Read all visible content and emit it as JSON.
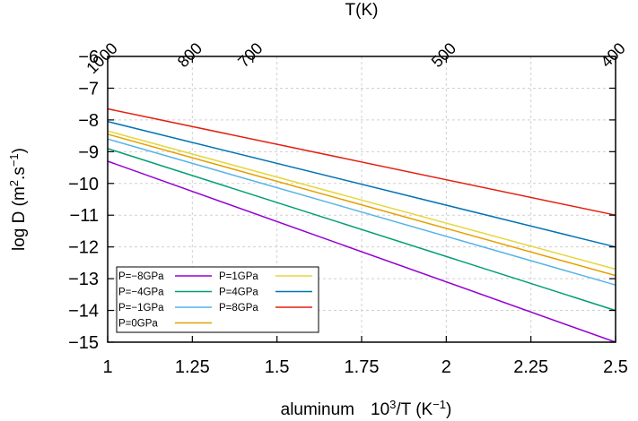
{
  "chart_data": {
    "type": "line",
    "xlabel_prefix": "aluminum",
    "xlabel_main": "10",
    "xlabel_sup": "3",
    "xlabel_rest": "/T (K",
    "xlabel_sup2": "−1",
    "xlabel_end": ")",
    "ylabel_main": "log D (m",
    "ylabel_sup": "2",
    "ylabel_mid": ".s",
    "ylabel_sup2": "−1",
    "ylabel_end": ")",
    "top_axis_label": "T(K)",
    "xlim": [
      1,
      2.5
    ],
    "ylim": [
      -15,
      -6
    ],
    "x_ticks": [
      "1",
      "1.25",
      "1.5",
      "1.75",
      "2",
      "2.25",
      "2.5"
    ],
    "y_ticks": [
      "−6",
      "−7",
      "−8",
      "−9",
      "−10",
      "−11",
      "−12",
      "−13",
      "−14",
      "−15"
    ],
    "top_ticks": [
      {
        "label": "1000",
        "T": 1000
      },
      {
        "label": "800",
        "T": 800
      },
      {
        "label": "700",
        "T": 700
      },
      {
        "label": "500",
        "T": 500
      },
      {
        "label": "400",
        "T": 400
      }
    ],
    "grid": true,
    "legend_position": "bottom-left",
    "series": [
      {
        "name": "P=−8GPa",
        "color": "#9400d3",
        "x": [
          1,
          2.5
        ],
        "y": [
          -9.3,
          -15.0
        ]
      },
      {
        "name": "P=1GPa",
        "color": "#e6d53c",
        "x": [
          1,
          2.5
        ],
        "y": [
          -8.35,
          -12.7
        ]
      },
      {
        "name": "P=−4GPa",
        "color": "#009e73",
        "x": [
          1,
          2.5
        ],
        "y": [
          -8.9,
          -14.0
        ]
      },
      {
        "name": "P=4GPa",
        "color": "#0072b2",
        "x": [
          1,
          2.5
        ],
        "y": [
          -8.05,
          -12.0
        ]
      },
      {
        "name": "P=−1GPa",
        "color": "#56b4e9",
        "x": [
          1,
          2.5
        ],
        "y": [
          -8.6,
          -13.2
        ]
      },
      {
        "name": "P=8GPa",
        "color": "#e51e10",
        "x": [
          1,
          2.5
        ],
        "y": [
          -7.65,
          -11.0
        ]
      },
      {
        "name": "P=0GPa",
        "color": "#e69f00",
        "x": [
          1,
          2.5
        ],
        "y": [
          -8.45,
          -12.9
        ]
      }
    ]
  }
}
